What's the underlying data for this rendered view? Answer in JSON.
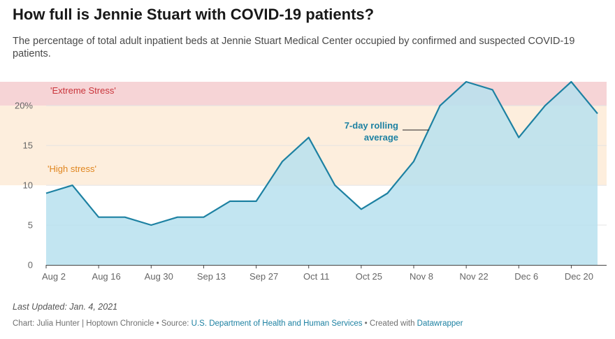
{
  "title": "How full is Jennie Stuart with COVID-19 patients?",
  "subtitle": "The percentage of total adult inpatient beds at Jennie Stuart Medical Center occupied by confirmed and suspected COVID-19 patients.",
  "footer": {
    "updated": "Last Updated: Jan. 4, 2021",
    "chart_credit": "Chart: Julia Hunter | Hoptown Chronicle",
    "separator": " • ",
    "source_prefix": "Source: ",
    "source_name": "U.S. Department of Health and Human Services",
    "created_prefix": "Created with ",
    "created_tool": "Datawrapper"
  },
  "colors": {
    "line": "#1d81a2",
    "area": "#b7e1ee",
    "extreme_band": "#f6d4d6",
    "high_band": "#fdeedd",
    "extreme_text": "#c9353b",
    "high_text": "#e0861f",
    "annotation": "#1d81a2"
  },
  "chart_data": {
    "type": "area",
    "x_ticks": [
      "Aug 2",
      "Aug 16",
      "Aug 30",
      "Sep 13",
      "Sep 27",
      "Oct 11",
      "Oct 25",
      "Nov 8",
      "Nov 22",
      "Dec 6",
      "Dec 20"
    ],
    "x": [
      "2020-08-02",
      "2020-08-09",
      "2020-08-16",
      "2020-08-23",
      "2020-08-30",
      "2020-09-06",
      "2020-09-13",
      "2020-09-20",
      "2020-09-27",
      "2020-10-04",
      "2020-10-11",
      "2020-10-18",
      "2020-10-25",
      "2020-11-01",
      "2020-11-08",
      "2020-11-15",
      "2020-11-22",
      "2020-11-29",
      "2020-12-06",
      "2020-12-13",
      "2020-12-20",
      "2020-12-27"
    ],
    "series": [
      {
        "values": [
          9,
          10,
          6,
          6,
          5,
          6,
          6,
          8,
          8,
          13,
          16,
          10,
          7,
          9,
          13,
          20,
          23,
          22,
          16,
          20,
          23,
          19
        ]
      }
    ],
    "y_ticks": [
      0,
      5,
      10,
      15,
      20
    ],
    "y_tick_labels": [
      "0",
      "5",
      "10",
      "15",
      "20%"
    ],
    "ylim": [
      0,
      23
    ],
    "bands": [
      {
        "label": "'High stress'",
        "from": 10,
        "to": 20
      },
      {
        "label": "'Extreme Stress'",
        "from": 20,
        "to": 23
      }
    ],
    "annotation": {
      "line1": "7-day rolling",
      "line2": "average"
    },
    "grid": true
  }
}
